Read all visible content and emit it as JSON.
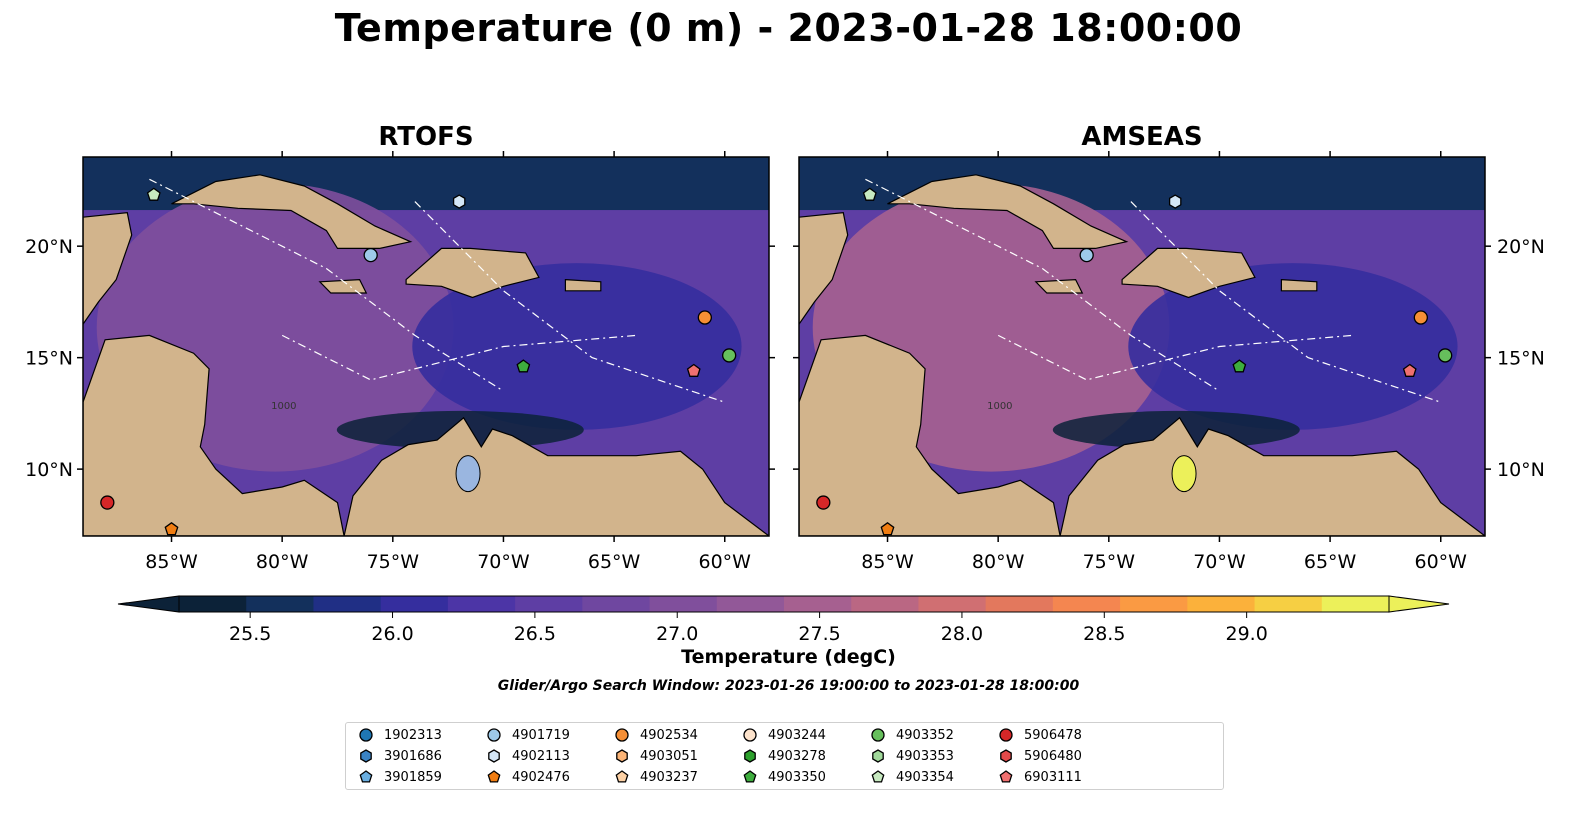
{
  "title": "Temperature (0 m) - 2023-01-28 18:00:00",
  "search_window": "Glider/Argo Search Window: 2023-01-26 19:00:00 to 2023-01-28 18:00:00",
  "colors": {
    "land": "#d2b48c",
    "water_inland": "#9ab6e0",
    "marker_edge": "#000000",
    "cmap": [
      "#0c2238",
      "#13305c",
      "#202f85",
      "#352e9e",
      "#4c35a6",
      "#5e3ea4",
      "#6f47a0",
      "#804f9c",
      "#925898",
      "#a66090",
      "#ba6783",
      "#d06f72",
      "#e3785d",
      "#f48650",
      "#fa9a43",
      "#fbb13b",
      "#f6cf43",
      "#ecf05a"
    ]
  },
  "panels": [
    {
      "title": "RTOFS"
    },
    {
      "title": "AMSEAS"
    }
  ],
  "chart_data": {
    "type": "heatmap",
    "title": "Temperature (0 m) - 2023-01-28 18:00:00",
    "subplots": [
      "RTOFS",
      "AMSEAS"
    ],
    "xlabel": "",
    "ylabel": "",
    "lon_range": [
      -89,
      -58
    ],
    "lat_range": [
      7,
      24
    ],
    "x_ticks": [
      "85°W",
      "80°W",
      "75°W",
      "70°W",
      "65°W",
      "60°W"
    ],
    "x_tick_values": [
      -85,
      -80,
      -75,
      -70,
      -65,
      -60
    ],
    "y_ticks": [
      "10°N",
      "15°N",
      "20°N"
    ],
    "y_tick_values": [
      10,
      15,
      20
    ],
    "colorbar": {
      "label": "Temperature (degC)",
      "range": [
        25.25,
        29.5
      ],
      "step": 0.25,
      "ticks": [
        25.5,
        26.0,
        26.5,
        27.0,
        27.5,
        28.0,
        28.5,
        29.0
      ],
      "tick_labels": [
        "25.5",
        "26.0",
        "26.5",
        "27.0",
        "27.5",
        "28.0",
        "28.5",
        "29.0"
      ],
      "extend": "both"
    },
    "contour_labels": [
      "1000"
    ],
    "legend_placement": "bottom-center",
    "floats": [
      {
        "id": "1902313",
        "marker": "circle",
        "color": "#1f77b4"
      },
      {
        "id": "3901686",
        "marker": "hexagon",
        "color": "#3a83c4"
      },
      {
        "id": "3901859",
        "marker": "pentagon",
        "color": "#6aaee0"
      },
      {
        "id": "4901719",
        "marker": "circle",
        "color": "#9ecae9",
        "lon": -76.0,
        "lat": 19.6
      },
      {
        "id": "4902113",
        "marker": "hexagon",
        "color": "#d4e6f6",
        "lon": -72.0,
        "lat": 22.0
      },
      {
        "id": "4902476",
        "marker": "pentagon",
        "color": "#f07d12",
        "lon": -85.0,
        "lat": 7.3
      },
      {
        "id": "4902534",
        "marker": "circle",
        "color": "#f68f35",
        "lon": -60.9,
        "lat": 16.8
      },
      {
        "id": "4903051",
        "marker": "hexagon",
        "color": "#fbb477"
      },
      {
        "id": "4903237",
        "marker": "pentagon",
        "color": "#fdd1a5"
      },
      {
        "id": "4903244",
        "marker": "circle",
        "color": "#fde3cc"
      },
      {
        "id": "4903278",
        "marker": "hexagon",
        "color": "#2ca02c"
      },
      {
        "id": "4903350",
        "marker": "pentagon",
        "color": "#3ead3e",
        "lon": -69.1,
        "lat": 14.6
      },
      {
        "id": "4903352",
        "marker": "circle",
        "color": "#66bf5c",
        "lon": -59.8,
        "lat": 15.1
      },
      {
        "id": "4903353",
        "marker": "hexagon",
        "color": "#a1d99b"
      },
      {
        "id": "4903354",
        "marker": "pentagon",
        "color": "#c7e9c0",
        "lon": -85.8,
        "lat": 22.3
      },
      {
        "id": "5906478",
        "marker": "circle",
        "color": "#d62728",
        "lon": -87.9,
        "lat": 8.5
      },
      {
        "id": "5906480",
        "marker": "hexagon",
        "color": "#e34a4a"
      },
      {
        "id": "6903111",
        "marker": "pentagon",
        "color": "#f07070",
        "lon": -61.4,
        "lat": 14.4
      }
    ]
  }
}
